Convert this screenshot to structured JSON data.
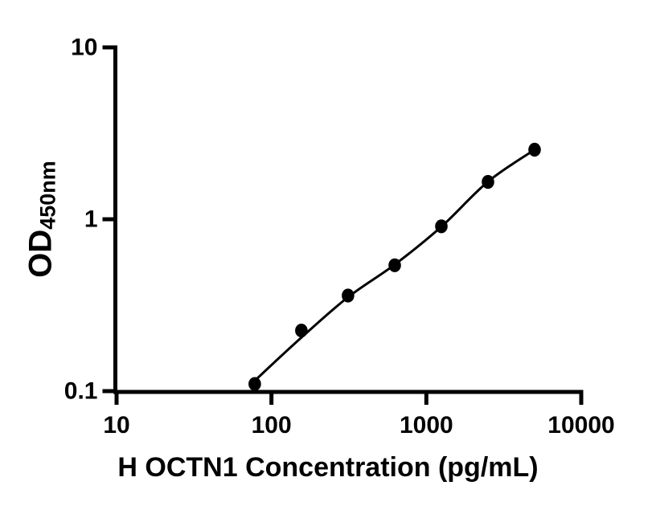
{
  "figure": {
    "background_color": "#ffffff",
    "foreground_color": "#000000"
  },
  "chart_data": {
    "type": "scatter",
    "title": "",
    "xlabel": "H OCTN1 Concentration (pg/mL)",
    "ylabel_main": "OD",
    "ylabel_sub": "450nm",
    "xscale": "log",
    "yscale": "log",
    "xlim": [
      10,
      10000
    ],
    "ylim": [
      0.1,
      10
    ],
    "grid": false,
    "legend": null,
    "x_ticks": [
      {
        "value": 10,
        "label": "10"
      },
      {
        "value": 100,
        "label": "100"
      },
      {
        "value": 1000,
        "label": "1000"
      },
      {
        "value": 10000,
        "label": "10000"
      }
    ],
    "y_ticks": [
      {
        "value": 10,
        "label": "10"
      },
      {
        "value": 1,
        "label": "1"
      },
      {
        "value": 0.1,
        "label": "0.1"
      }
    ],
    "points": [
      {
        "x": 78,
        "y": 0.11
      },
      {
        "x": 156,
        "y": 0.225
      },
      {
        "x": 312,
        "y": 0.36
      },
      {
        "x": 625,
        "y": 0.54
      },
      {
        "x": 1250,
        "y": 0.91
      },
      {
        "x": 2500,
        "y": 1.65
      },
      {
        "x": 5000,
        "y": 2.54
      }
    ],
    "fit_line": [
      {
        "x": 78,
        "y": 0.115
      },
      {
        "x": 156,
        "y": 0.205
      },
      {
        "x": 312,
        "y": 0.352
      },
      {
        "x": 625,
        "y": 0.545
      },
      {
        "x": 1250,
        "y": 0.905
      },
      {
        "x": 2500,
        "y": 1.655
      },
      {
        "x": 5000,
        "y": 2.54
      }
    ],
    "marker_color": "#000000",
    "line_color": "#000000",
    "axis_color": "#000000"
  }
}
